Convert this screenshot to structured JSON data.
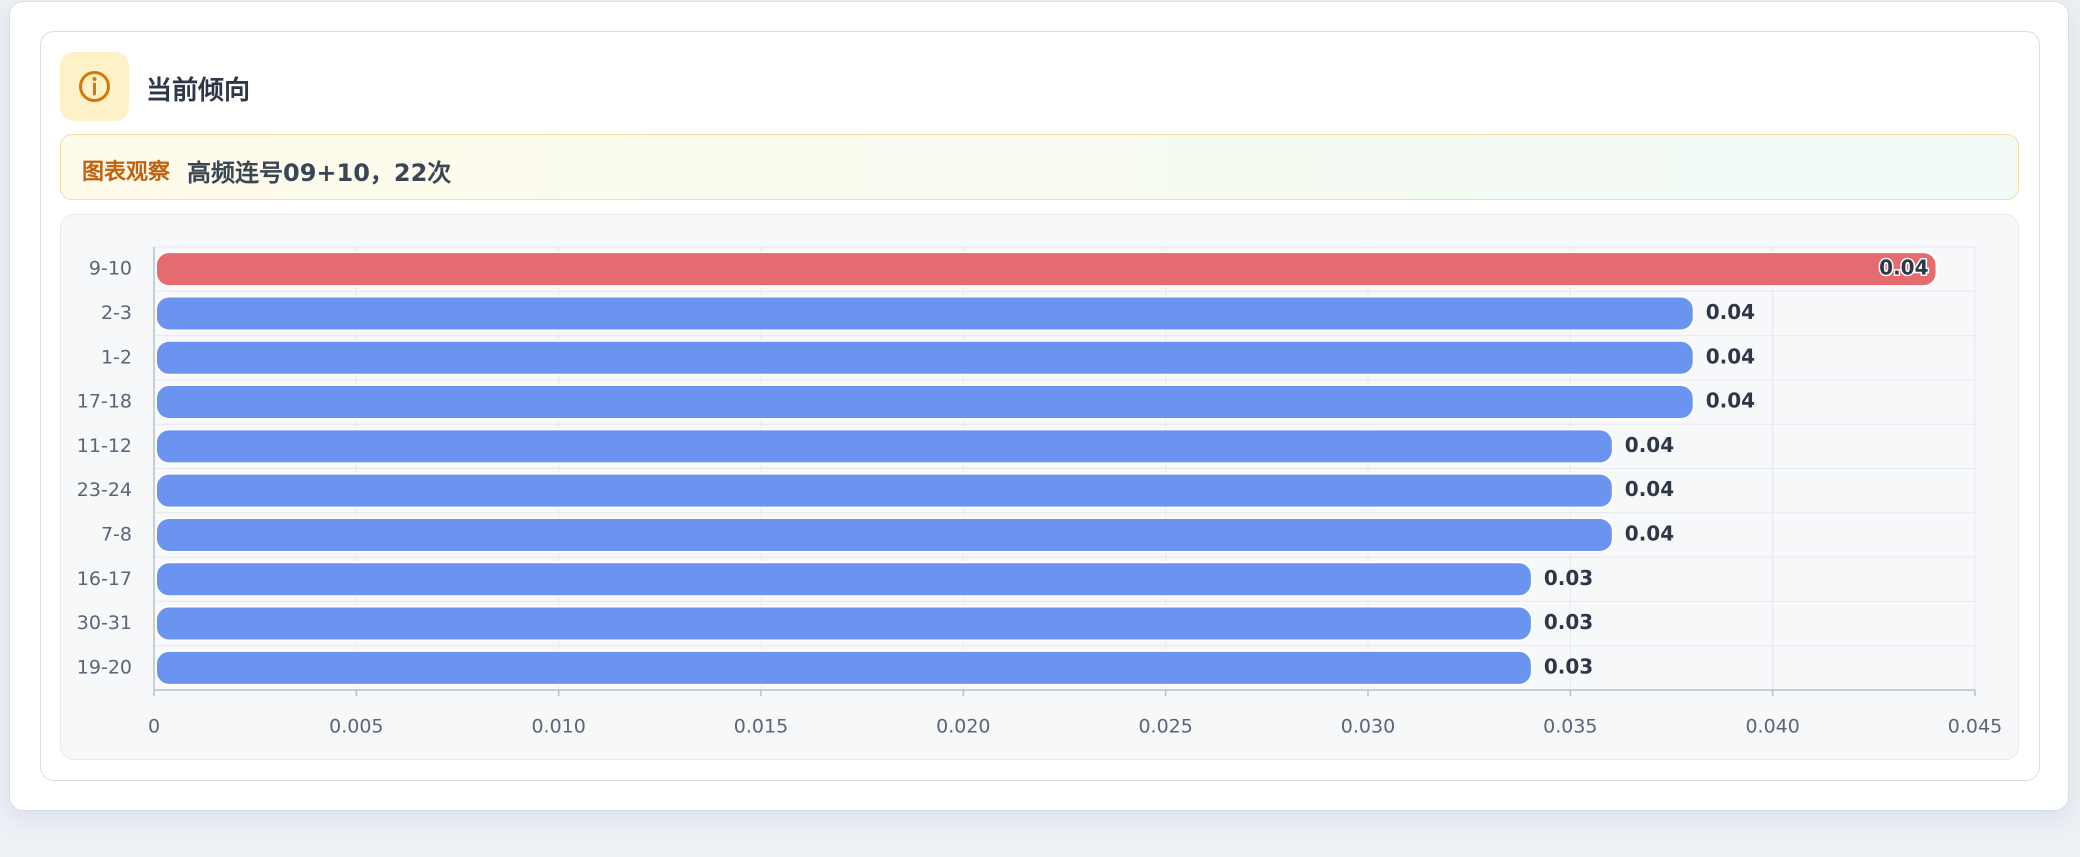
{
  "card": {
    "title": "当前倾向",
    "observation_label": "图表观察",
    "observation_text": "高频连号09+10，22次"
  },
  "chart_data": {
    "type": "hbar",
    "categories": [
      "9-10",
      "2-3",
      "1-2",
      "17-18",
      "11-12",
      "23-24",
      "7-8",
      "16-17",
      "30-31",
      "19-20"
    ],
    "values": [
      0.044,
      0.038,
      0.038,
      0.038,
      0.036,
      0.036,
      0.036,
      0.034,
      0.034,
      0.034
    ],
    "value_labels": [
      "0.04",
      "0.04",
      "0.04",
      "0.04",
      "0.04",
      "0.04",
      "0.04",
      "0.03",
      "0.03",
      "0.03"
    ],
    "colors": [
      "#e5686b",
      "#6891f0",
      "#6891f0",
      "#6891f0",
      "#6891f0",
      "#6891f0",
      "#6891f0",
      "#6891f0",
      "#6891f0",
      "#6891f0"
    ],
    "xlim": [
      0,
      0.045
    ],
    "xticks": [
      0,
      0.005,
      {
        "value": 0.01,
        "label": "0.010"
      },
      0.015,
      {
        "value": 0.02,
        "label": "0.020"
      },
      0.025,
      {
        "value": 0.03,
        "label": "0.030"
      },
      0.035,
      {
        "value": 0.04,
        "label": "0.040"
      },
      0.045
    ],
    "grid": true
  }
}
